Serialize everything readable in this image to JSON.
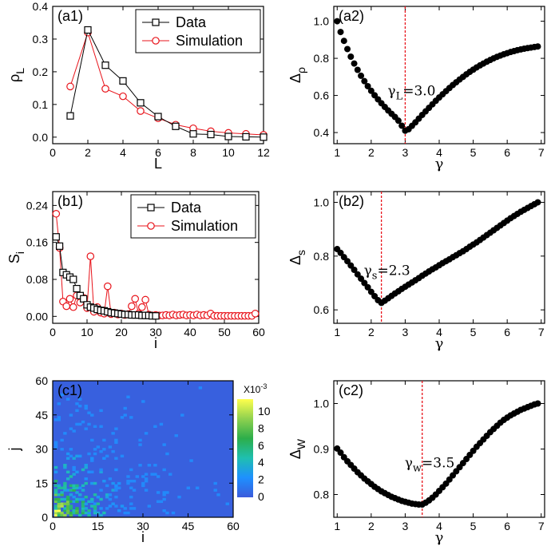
{
  "chart_data": [
    {
      "id": "a1",
      "type": "line",
      "panel_label": "(a1)",
      "xlabel": "L",
      "ylabel": "ρ",
      "ylabel_sub": "L",
      "xlim": [
        0,
        12
      ],
      "ylim": [
        -0.02,
        0.4
      ],
      "xticks": [
        0,
        2,
        4,
        6,
        8,
        10,
        12
      ],
      "yticks": [
        0.0,
        0.1,
        0.2,
        0.3,
        0.4
      ],
      "ytick_decimals": 1,
      "legend": "top-right",
      "series": [
        {
          "name": "Data",
          "marker": "square",
          "color": "#000000",
          "x": [
            1,
            2,
            3,
            4,
            5,
            6,
            7,
            8,
            9,
            10,
            11,
            12
          ],
          "y": [
            0.065,
            0.328,
            0.22,
            0.172,
            0.105,
            0.063,
            0.033,
            0.01,
            0.008,
            0.002,
            0.001,
            0.0
          ]
        },
        {
          "name": "Simulation",
          "marker": "circle",
          "color": "#e8141b",
          "x": [
            1,
            2,
            3,
            4,
            5,
            6,
            7,
            8,
            9,
            10,
            11,
            12
          ],
          "y": [
            0.155,
            0.32,
            0.148,
            0.125,
            0.08,
            0.058,
            0.038,
            0.027,
            0.018,
            0.013,
            0.01,
            0.007
          ]
        }
      ]
    },
    {
      "id": "a2",
      "type": "scatter",
      "panel_label": "(a2)",
      "xlabel": "γ",
      "ylabel": "Δ",
      "ylabel_sub": "ρ",
      "xlim": [
        0.9,
        7.1
      ],
      "ylim": [
        0.34,
        1.08
      ],
      "xticks": [
        1,
        2,
        3,
        4,
        5,
        6,
        7
      ],
      "yticks": [
        0.4,
        0.6,
        0.8,
        1.0
      ],
      "ytick_decimals": 1,
      "vline": 3.0,
      "annotation": {
        "main": "γ",
        "sub": "L",
        "rest": "=3.0",
        "x": 3.0,
        "y": 0.6
      },
      "series": [
        {
          "name": "",
          "marker": "dot",
          "color": "#000000",
          "x": [
            1.0,
            1.1,
            1.2,
            1.3,
            1.4,
            1.5,
            1.6,
            1.7,
            1.8,
            1.9,
            2.0,
            2.1,
            2.2,
            2.3,
            2.4,
            2.5,
            2.6,
            2.7,
            2.8,
            2.9,
            3.0,
            3.1,
            3.2,
            3.3,
            3.4,
            3.5,
            3.6,
            3.7,
            3.8,
            3.9,
            4.0,
            4.1,
            4.2,
            4.3,
            4.4,
            4.5,
            4.6,
            4.7,
            4.8,
            4.9,
            5.0,
            5.1,
            5.2,
            5.3,
            5.4,
            5.5,
            5.6,
            5.7,
            5.8,
            5.9,
            6.0,
            6.1,
            6.2,
            6.3,
            6.4,
            6.5,
            6.6,
            6.7,
            6.8,
            6.9
          ],
          "y": [
            1.0,
            0.942,
            0.894,
            0.85,
            0.809,
            0.772,
            0.738,
            0.706,
            0.677,
            0.65,
            0.625,
            0.601,
            0.579,
            0.558,
            0.538,
            0.519,
            0.501,
            0.484,
            0.464,
            0.437,
            0.41,
            0.418,
            0.436,
            0.455,
            0.475,
            0.495,
            0.514,
            0.533,
            0.552,
            0.571,
            0.589,
            0.606,
            0.623,
            0.64,
            0.656,
            0.671,
            0.686,
            0.7,
            0.714,
            0.727,
            0.739,
            0.751,
            0.762,
            0.772,
            0.782,
            0.791,
            0.8,
            0.808,
            0.815,
            0.822,
            0.828,
            0.834,
            0.839,
            0.844,
            0.848,
            0.852,
            0.855,
            0.858,
            0.861,
            0.864
          ]
        }
      ]
    },
    {
      "id": "b1",
      "type": "line",
      "panel_label": "(b1)",
      "xlabel": "i",
      "ylabel": "S",
      "ylabel_sub": "i",
      "xlim": [
        0,
        60
      ],
      "ylim": [
        -0.015,
        0.27
      ],
      "xticks": [
        0,
        10,
        20,
        30,
        40,
        50,
        60
      ],
      "yticks": [
        0.0,
        0.08,
        0.16,
        0.24
      ],
      "ytick_decimals": 2,
      "legend": "top-right",
      "series": [
        {
          "name": "Data",
          "marker": "square",
          "color": "#000000",
          "x": [
            1,
            2,
            3,
            4,
            5,
            6,
            7,
            8,
            9,
            10,
            11,
            12,
            13,
            14,
            15,
            16,
            17,
            18,
            19,
            20,
            21,
            22,
            23,
            24,
            25,
            26,
            27,
            28,
            29,
            30
          ],
          "y": [
            0.172,
            0.152,
            0.095,
            0.09,
            0.085,
            0.08,
            0.06,
            0.045,
            0.038,
            0.025,
            0.02,
            0.018,
            0.015,
            0.013,
            0.012,
            0.01,
            0.008,
            0.007,
            0.006,
            0.005,
            0.004,
            0.004,
            0.003,
            0.003,
            0.003,
            0.002,
            0.002,
            0.002,
            0.001,
            0.001
          ]
        },
        {
          "name": "Simulation",
          "marker": "circle",
          "color": "#e8141b",
          "x": [
            1,
            2,
            3,
            4,
            5,
            6,
            7,
            8,
            9,
            10,
            11,
            12,
            13,
            14,
            15,
            16,
            17,
            18,
            19,
            20,
            21,
            22,
            23,
            24,
            25,
            26,
            27,
            28,
            29,
            30,
            31,
            32,
            33,
            34,
            35,
            36,
            37,
            38,
            39,
            40,
            41,
            42,
            43,
            44,
            45,
            46,
            47,
            48,
            49,
            50,
            51,
            52,
            53,
            54,
            55,
            56,
            57,
            58,
            59
          ],
          "y": [
            0.222,
            0.148,
            0.032,
            0.022,
            0.038,
            0.02,
            0.045,
            0.03,
            0.04,
            0.018,
            0.13,
            0.01,
            0.02,
            0.008,
            0.006,
            0.065,
            0.005,
            0.008,
            0.004,
            0.006,
            0.003,
            0.005,
            0.022,
            0.038,
            0.006,
            0.02,
            0.036,
            0.004,
            0.002,
            0.003,
            0.002,
            0.002,
            0.003,
            0.002,
            0.004,
            0.002,
            0.003,
            0.004,
            0.002,
            0.003,
            0.002,
            0.004,
            0.002,
            0.003,
            0.002,
            0.006,
            0.001,
            0.001,
            0.001,
            0.001,
            0.001,
            0.001,
            0.001,
            0.001,
            0.001,
            0.001,
            0.001,
            0.001,
            0.006
          ]
        }
      ]
    },
    {
      "id": "b2",
      "type": "scatter",
      "panel_label": "(b2)",
      "xlabel": "γ",
      "ylabel": "Δ",
      "ylabel_sub": "s",
      "xlim": [
        0.9,
        7.1
      ],
      "ylim": [
        0.55,
        1.04
      ],
      "xticks": [
        1,
        2,
        3,
        4,
        5,
        6,
        7
      ],
      "yticks": [
        0.6,
        0.8,
        1.0
      ],
      "ytick_decimals": 1,
      "vline": 2.3,
      "annotation": {
        "main": "γ",
        "sub": "s",
        "rest": "=2.3",
        "x": 2.3,
        "y": 0.73
      },
      "series": [
        {
          "name": "",
          "marker": "dot",
          "color": "#000000",
          "x": [
            1.0,
            1.1,
            1.2,
            1.3,
            1.4,
            1.5,
            1.6,
            1.7,
            1.8,
            1.9,
            2.0,
            2.1,
            2.2,
            2.3,
            2.4,
            2.5,
            2.6,
            2.7,
            2.8,
            2.9,
            3.0,
            3.1,
            3.2,
            3.3,
            3.4,
            3.5,
            3.6,
            3.7,
            3.8,
            3.9,
            4.0,
            4.1,
            4.2,
            4.3,
            4.4,
            4.5,
            4.6,
            4.7,
            4.8,
            4.9,
            5.0,
            5.1,
            5.2,
            5.3,
            5.4,
            5.5,
            5.6,
            5.7,
            5.8,
            5.9,
            6.0,
            6.1,
            6.2,
            6.3,
            6.4,
            6.5,
            6.6,
            6.7,
            6.8,
            6.9
          ],
          "y": [
            0.826,
            0.812,
            0.796,
            0.781,
            0.765,
            0.749,
            0.732,
            0.716,
            0.7,
            0.684,
            0.667,
            0.651,
            0.636,
            0.626,
            0.634,
            0.643,
            0.652,
            0.661,
            0.669,
            0.678,
            0.686,
            0.694,
            0.702,
            0.71,
            0.718,
            0.727,
            0.735,
            0.743,
            0.751,
            0.758,
            0.766,
            0.774,
            0.781,
            0.788,
            0.796,
            0.803,
            0.811,
            0.818,
            0.826,
            0.835,
            0.843,
            0.851,
            0.86,
            0.869,
            0.878,
            0.887,
            0.896,
            0.905,
            0.914,
            0.923,
            0.932,
            0.941,
            0.949,
            0.957,
            0.965,
            0.972,
            0.979,
            0.986,
            0.993,
            1.0
          ]
        }
      ]
    },
    {
      "id": "c1",
      "type": "heatmap",
      "panel_label": "(c1)",
      "xlabel": "i",
      "ylabel": "j",
      "xlim": [
        0,
        60
      ],
      "ylim": [
        0,
        60
      ],
      "xticks": [
        0,
        15,
        30,
        45,
        60
      ],
      "yticks": [
        0,
        15,
        30,
        45,
        60
      ],
      "colorbar": {
        "label": "X10",
        "label_exp": "-3",
        "ticks": [
          0,
          2,
          4,
          6,
          8,
          10
        ],
        "range": [
          0,
          11.5
        ],
        "colors": [
          "#3b5bdb",
          "#1e90ff",
          "#1fbfb0",
          "#2cae4a",
          "#8fd14f",
          "#ffff4d"
        ]
      },
      "background_value": 0.2
    },
    {
      "id": "c2",
      "type": "scatter",
      "panel_label": "(c2)",
      "xlabel": "γ",
      "ylabel": "Δ",
      "ylabel_sub": "W",
      "xlim": [
        0.9,
        7.1
      ],
      "ylim": [
        0.75,
        1.05
      ],
      "xticks": [
        1,
        2,
        3,
        4,
        5,
        6,
        7
      ],
      "yticks": [
        0.8,
        0.9,
        1.0
      ],
      "ytick_decimals": 1,
      "vline": 3.5,
      "annotation": {
        "main": "γ",
        "sub": "w",
        "rest": "=3.5",
        "x": 3.5,
        "y": 0.86
      },
      "series": [
        {
          "name": "",
          "marker": "dot",
          "color": "#000000",
          "x": [
            1.0,
            1.1,
            1.2,
            1.3,
            1.4,
            1.5,
            1.6,
            1.7,
            1.8,
            1.9,
            2.0,
            2.1,
            2.2,
            2.3,
            2.4,
            2.5,
            2.6,
            2.7,
            2.8,
            2.9,
            3.0,
            3.1,
            3.2,
            3.3,
            3.4,
            3.5,
            3.6,
            3.7,
            3.8,
            3.9,
            4.0,
            4.1,
            4.2,
            4.3,
            4.4,
            4.5,
            4.6,
            4.7,
            4.8,
            4.9,
            5.0,
            5.1,
            5.2,
            5.3,
            5.4,
            5.5,
            5.6,
            5.7,
            5.8,
            5.9,
            6.0,
            6.1,
            6.2,
            6.3,
            6.4,
            6.5,
            6.6,
            6.7,
            6.8,
            6.9
          ],
          "y": [
            0.901,
            0.892,
            0.882,
            0.873,
            0.865,
            0.857,
            0.849,
            0.842,
            0.835,
            0.829,
            0.823,
            0.817,
            0.812,
            0.807,
            0.803,
            0.799,
            0.795,
            0.792,
            0.789,
            0.786,
            0.784,
            0.782,
            0.78,
            0.779,
            0.778,
            0.778,
            0.782,
            0.787,
            0.793,
            0.8,
            0.808,
            0.816,
            0.824,
            0.833,
            0.842,
            0.851,
            0.86,
            0.869,
            0.878,
            0.887,
            0.896,
            0.905,
            0.913,
            0.921,
            0.929,
            0.937,
            0.944,
            0.951,
            0.958,
            0.964,
            0.969,
            0.974,
            0.978,
            0.982,
            0.986,
            0.989,
            0.992,
            0.995,
            0.998,
            1.0
          ]
        }
      ]
    }
  ]
}
